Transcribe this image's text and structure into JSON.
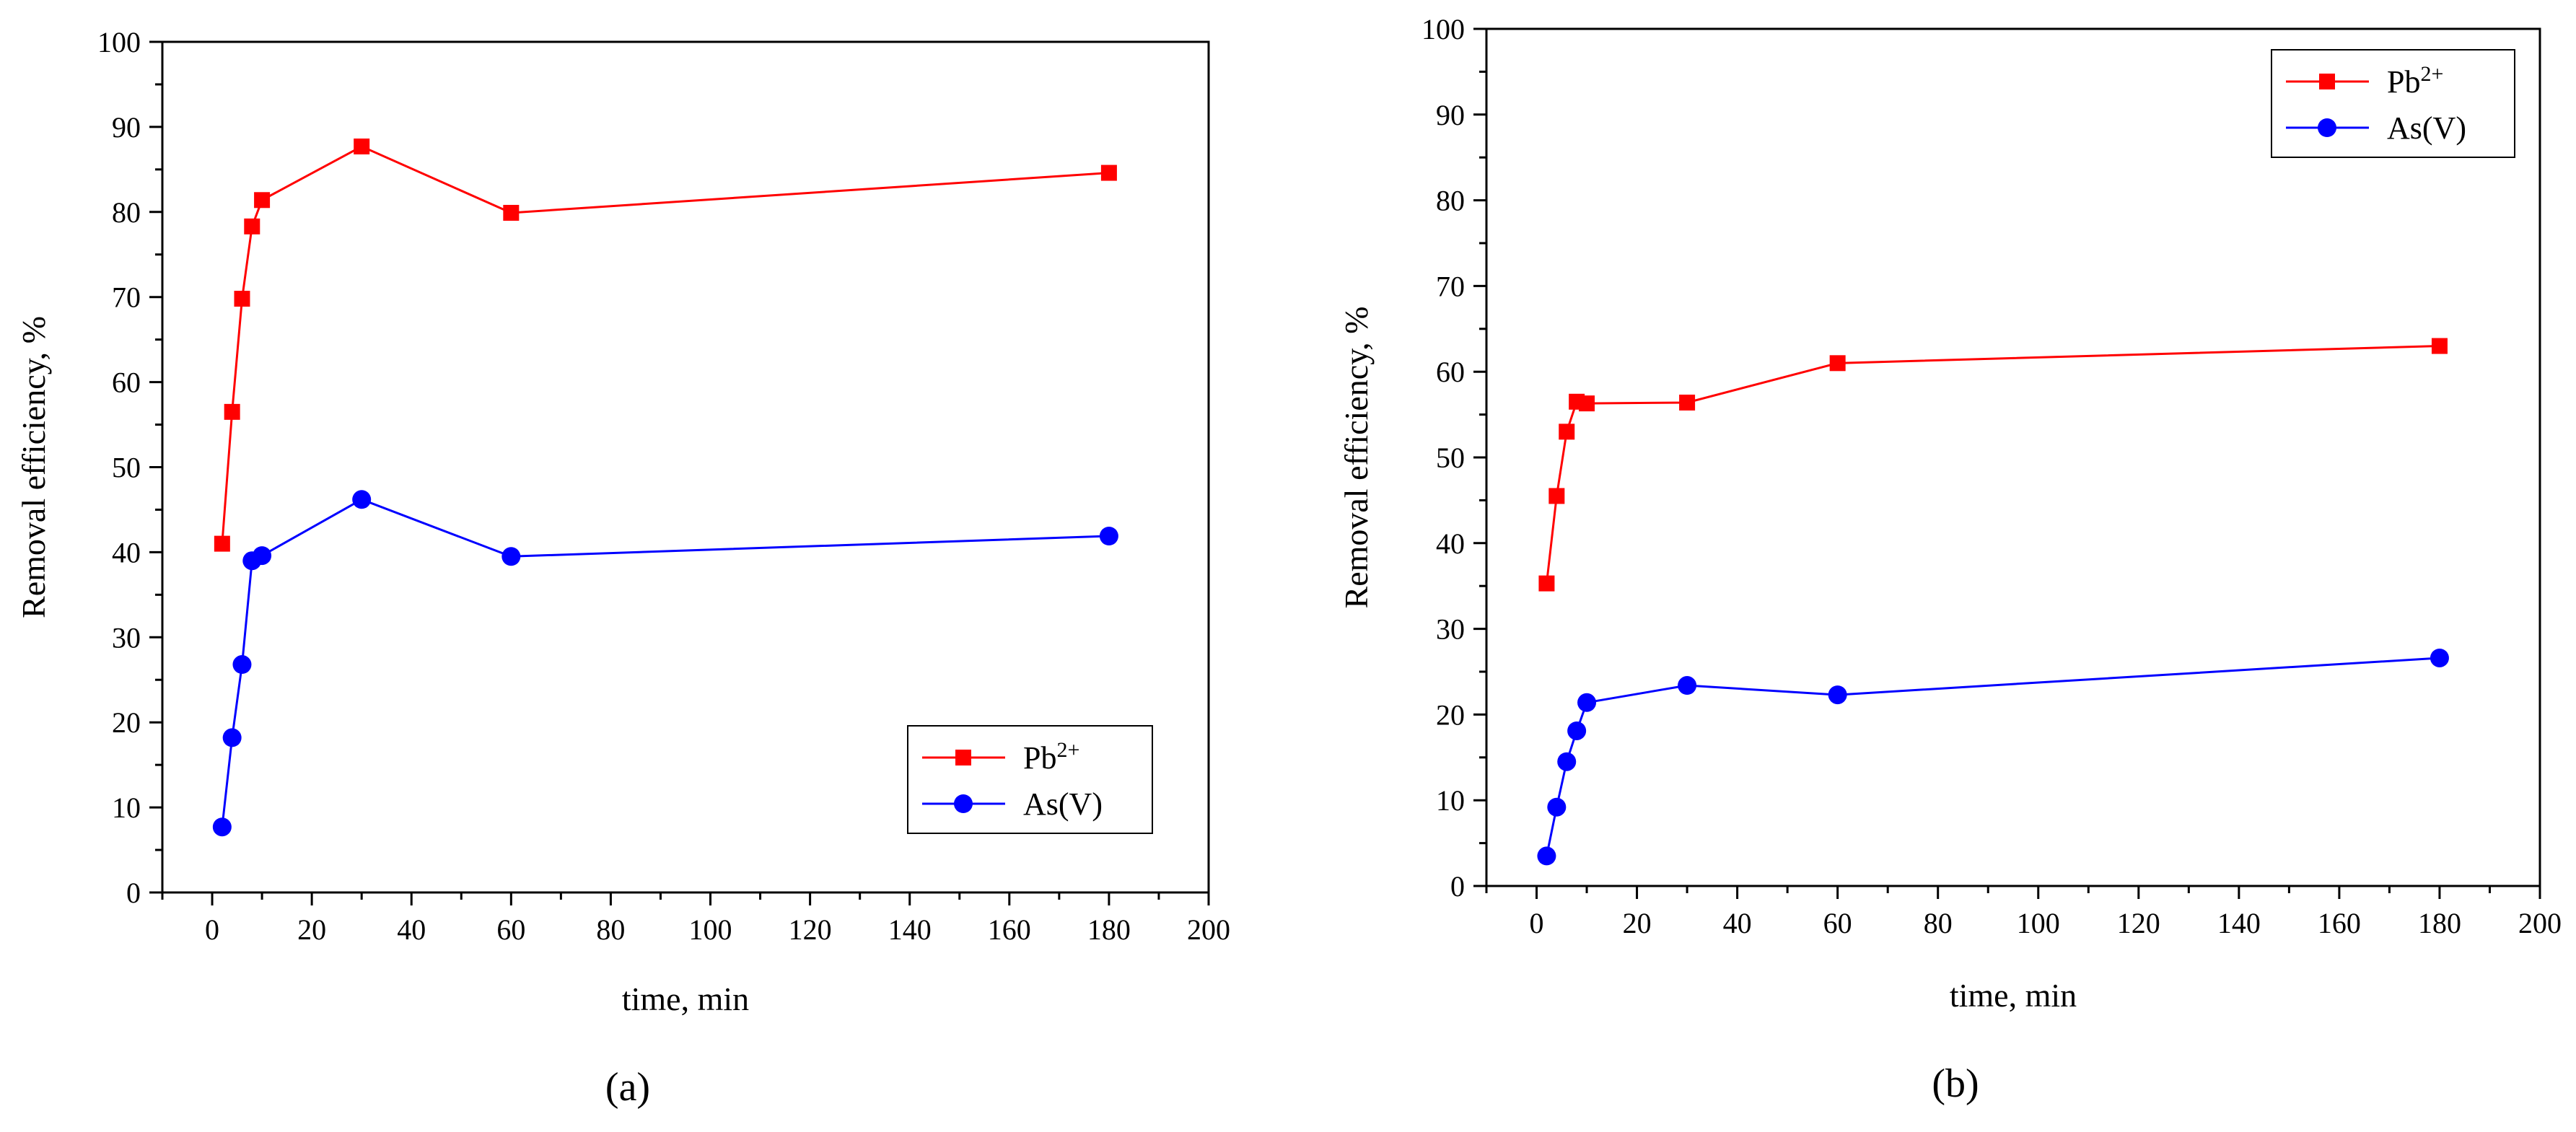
{
  "chart_data": [
    {
      "type": "line",
      "panel_label": "(a)",
      "title": "",
      "xlabel": "time, min",
      "ylabel": "Removal efficiency, %",
      "xlim": [
        -10,
        200
      ],
      "ylim": [
        0,
        100
      ],
      "xticks": [
        0,
        20,
        40,
        60,
        80,
        100,
        120,
        140,
        160,
        180,
        200
      ],
      "yticks": [
        0,
        10,
        20,
        30,
        40,
        50,
        60,
        70,
        80,
        90,
        100
      ],
      "x": [
        2,
        4,
        6,
        8,
        10,
        30,
        60,
        180
      ],
      "legend_position": "lower-right",
      "series": [
        {
          "name": "Pb",
          "name_sup": "2+",
          "marker": "square",
          "color": "#ff0000",
          "values": [
            41,
            56.5,
            69.8,
            78.3,
            81.4,
            87.7,
            79.9,
            84.6
          ]
        },
        {
          "name": "As(V)",
          "name_sup": "",
          "marker": "circle",
          "color": "#0000ff",
          "values": [
            7.7,
            18.2,
            26.8,
            39,
            39.6,
            46.2,
            39.5,
            41.9
          ]
        }
      ]
    },
    {
      "type": "line",
      "panel_label": "(b)",
      "title": "",
      "xlabel": "time, min",
      "ylabel": "Removal efficiency, %",
      "xlim": [
        -10,
        200
      ],
      "ylim": [
        0,
        100
      ],
      "xticks": [
        0,
        20,
        40,
        60,
        80,
        100,
        120,
        140,
        160,
        180,
        200
      ],
      "yticks": [
        0,
        10,
        20,
        30,
        40,
        50,
        60,
        70,
        80,
        90,
        100
      ],
      "x": [
        2,
        4,
        6,
        8,
        10,
        30,
        60,
        180
      ],
      "legend_position": "top-right",
      "series": [
        {
          "name": "Pb",
          "name_sup": "2+",
          "marker": "square",
          "color": "#ff0000",
          "values": [
            35.3,
            45.5,
            53,
            56.5,
            56.3,
            56.4,
            61,
            63
          ]
        },
        {
          "name": "As(V)",
          "name_sup": "",
          "marker": "circle",
          "color": "#0000ff",
          "values": [
            3.5,
            9.2,
            14.5,
            18.1,
            21.4,
            23.4,
            22.3,
            26.6
          ]
        }
      ]
    }
  ]
}
